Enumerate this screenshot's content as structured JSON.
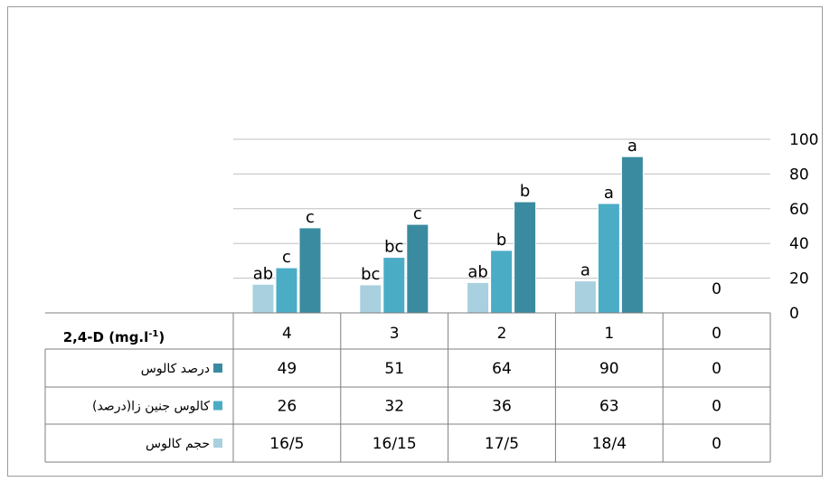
{
  "chart_data": {
    "type": "bar",
    "title": "",
    "xlabel": "2,4-D  (mg.l",
    "xlabel_sup": "-1",
    "xlabel_close": ")",
    "categories": [
      "4",
      "3",
      "2",
      "1",
      "0"
    ],
    "ylim": [
      0,
      100
    ],
    "yticks": [
      "0",
      "20",
      "40",
      "60",
      "80",
      "100"
    ],
    "grid": true,
    "legend": "table-left",
    "series": [
      {
        "name": "درصد کالوس",
        "color": "#3a8ba0",
        "values": [
          49,
          51,
          64,
          90,
          0
        ],
        "table_values": [
          "49",
          "51",
          "64",
          "90",
          "0"
        ],
        "letters": [
          "c",
          "c",
          "b",
          "a",
          ""
        ]
      },
      {
        "name": "کالوس جنین زا(درصد)",
        "color": "#4bacc6",
        "values": [
          26,
          32,
          36,
          63,
          0
        ],
        "table_values": [
          "26",
          "32",
          "36",
          "63",
          "0"
        ],
        "letters": [
          "c",
          "bc",
          "b",
          "a",
          ""
        ]
      },
      {
        "name": "حجم کالوس",
        "color": "#a8d0de",
        "values": [
          16.5,
          16.15,
          17.5,
          18.4,
          0
        ],
        "table_values": [
          "16/5",
          "16/15",
          "17/5",
          "18/4",
          "0"
        ],
        "letters": [
          "ab",
          "bc",
          "ab",
          "a",
          ""
        ]
      }
    ],
    "data_labels": [
      "",
      "",
      "",
      "",
      "0"
    ]
  }
}
